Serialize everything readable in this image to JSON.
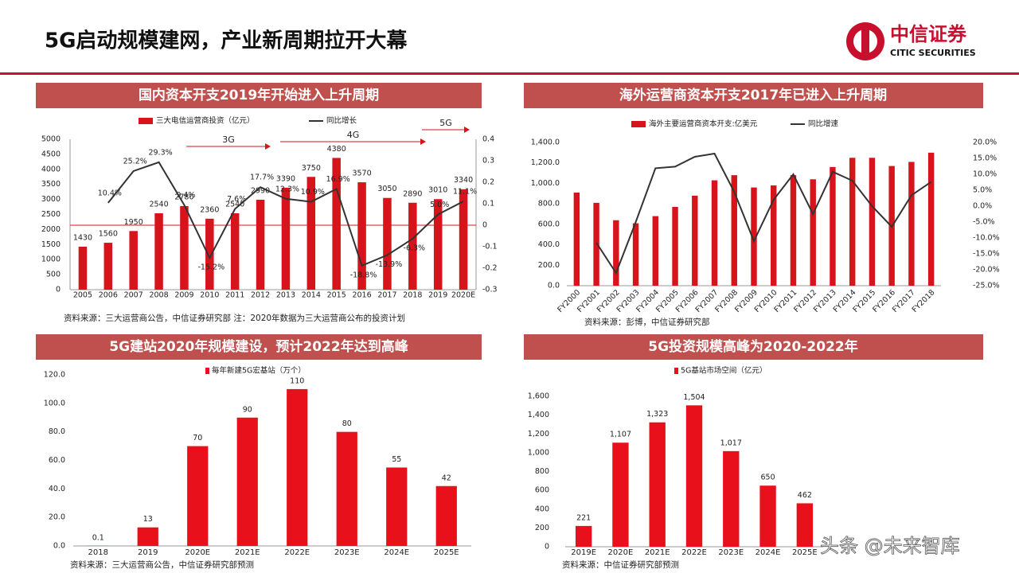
{
  "title": "5G启动规模建网，产业新周期拉开大幕",
  "logo": {
    "name": "中信证券",
    "subtitle": "CITIC SECURITIES"
  },
  "watermark": "头条 @未来智库",
  "chart_data": [
    {
      "type": "combo",
      "title": "国内资本开支2019年开始进入上升周期",
      "source": "资料来源：三大运营商公告，中信证券研究部 注：2020年数据为三大运营商公布的投资计划",
      "annotations": [
        "3G",
        "4G",
        "5G"
      ],
      "categories": [
        "2005",
        "2006",
        "2007",
        "2008",
        "2009",
        "2010",
        "2011",
        "2012",
        "2013",
        "2014",
        "2015",
        "2016",
        "2017",
        "2018",
        "2019",
        "2020E"
      ],
      "series": [
        {
          "name": "三大电信运营商投资（亿元）",
          "type": "bar",
          "color": "#d7141c",
          "values": [
            1430,
            1560,
            1950,
            2540,
            2780,
            2360,
            2540,
            2990,
            3390,
            3750,
            4380,
            3570,
            3050,
            2890,
            3010,
            3340
          ]
        },
        {
          "name": "同比增长",
          "type": "line",
          "color": "#333333",
          "axis": "y2",
          "values": [
            null,
            0.104,
            0.252,
            0.293,
            0.094,
            -0.152,
            0.076,
            0.177,
            0.123,
            0.109,
            0.169,
            -0.188,
            -0.139,
            -0.063,
            0.05,
            0.111
          ],
          "value_labels": [
            null,
            "10.4%",
            "25.2%",
            "29.3%",
            "9.4%",
            "-15.2%",
            "7.6%",
            "17.7%",
            "12.3%",
            "10.9%",
            "16.9%",
            "-18.8%",
            "-13.9%",
            "-6.3%",
            "5.0%",
            "11.1%"
          ]
        }
      ],
      "ylim": [
        0,
        5000
      ],
      "yticks": [
        0,
        500,
        1000,
        1500,
        2000,
        2500,
        3000,
        3500,
        4000,
        4500,
        5000
      ],
      "y2lim": [
        -0.3,
        0.4
      ],
      "y2ticks": [
        -0.3,
        -0.2,
        -0.1,
        0,
        0.1,
        0.2,
        0.3,
        0.4
      ],
      "zero_line": true
    },
    {
      "type": "combo",
      "title": "海外运营商资本开支2017年已进入上升周期",
      "source": "资料来源：彭博，中信证券研究部",
      "categories": [
        "FY2000",
        "FY2001",
        "FY2002",
        "FY2003",
        "FY2004",
        "FY2005",
        "FY2006",
        "FY2007",
        "FY2008",
        "FY2009",
        "FY2010",
        "FY2011",
        "FY2012",
        "FY2013",
        "FY2014",
        "FY2015",
        "FY2016",
        "FY2017",
        "FY2018"
      ],
      "series": [
        {
          "name": "海外主要运营商资本开支:亿美元",
          "type": "bar",
          "color": "#d7141c",
          "values": [
            910,
            810,
            640,
            610,
            680,
            770,
            880,
            1030,
            1080,
            960,
            980,
            1080,
            1040,
            1160,
            1250,
            1250,
            1170,
            1210,
            1300
          ]
        },
        {
          "name": "同比增速",
          "type": "line",
          "color": "#333333",
          "axis": "y2",
          "values": [
            null,
            -11.5,
            -21,
            -5,
            11.9,
            12.4,
            15.5,
            16.5,
            4.5,
            -11,
            2,
            10,
            -2.5,
            10.8,
            8,
            0,
            -6.5,
            3.4,
            7.6
          ]
        }
      ],
      "ylim": [
        0,
        1400
      ],
      "yticks": [
        {
          "value": 0,
          "label": "0.0"
        },
        {
          "value": 200,
          "label": "200.0"
        },
        {
          "value": 400,
          "label": "400.0"
        },
        {
          "value": 600,
          "label": "600.0"
        },
        {
          "value": 800,
          "label": "800.0"
        },
        {
          "value": 1000,
          "label": "1,000.0"
        },
        {
          "value": 1200,
          "label": "1,200.0"
        },
        {
          "value": 1400,
          "label": "1,400.0"
        }
      ],
      "y2lim": [
        -25,
        20
      ],
      "y2ticks": [
        {
          "value": -25,
          "label": "-25.0%"
        },
        {
          "value": -20,
          "label": "-20.0%"
        },
        {
          "value": -15,
          "label": "-15.0%"
        },
        {
          "value": -10,
          "label": "-10.0%"
        },
        {
          "value": -5,
          "label": "-5.0%"
        },
        {
          "value": 0,
          "label": "0.0%"
        },
        {
          "value": 5,
          "label": "5.0%"
        },
        {
          "value": 10,
          "label": "10.0%"
        },
        {
          "value": 15,
          "label": "15.0%"
        },
        {
          "value": 20,
          "label": "20.0%"
        }
      ]
    },
    {
      "type": "bar",
      "title": "5G建站2020年规模建设，预计2022年达到高峰",
      "source": "资料来源：三大运营商公告，中信证券研究部预测",
      "categories": [
        "2018",
        "2019",
        "2020E",
        "2021E",
        "2022E",
        "2023E",
        "2024E",
        "2025E"
      ],
      "series": [
        {
          "name": "每年新建5G宏基站（万个）",
          "type": "bar",
          "color": "#e8101a",
          "values": [
            0.1,
            13,
            70,
            90,
            110,
            80,
            55,
            42
          ]
        }
      ],
      "ylim": [
        0,
        120
      ],
      "yticks": [
        {
          "value": 0,
          "label": "0.0"
        },
        {
          "value": 20,
          "label": "20.0"
        },
        {
          "value": 40,
          "label": "40.0"
        },
        {
          "value": 60,
          "label": "60.0"
        },
        {
          "value": 80,
          "label": "80.0"
        },
        {
          "value": 100,
          "label": "100.0"
        },
        {
          "value": 120,
          "label": "120.0"
        }
      ]
    },
    {
      "type": "bar",
      "title": "5G投资规模高峰为2020-2022年",
      "source": "资料来源：中信证券研究部预测",
      "categories": [
        "2019E",
        "2020E",
        "2021E",
        "2022E",
        "2023E",
        "2024E",
        "2025E"
      ],
      "series": [
        {
          "name": "5G基站市场空间（亿元）",
          "type": "bar",
          "color": "#e8101a",
          "values": [
            221,
            1107,
            1323,
            1504,
            1017,
            650,
            462
          ],
          "value_labels": [
            "221",
            "1,107",
            "1,323",
            "1,504",
            "1,017",
            "650",
            "462"
          ]
        }
      ],
      "ylim": [
        0,
        1600
      ],
      "yticks": [
        0,
        200,
        400,
        600,
        800,
        {
          "value": 1000,
          "label": "1,000"
        },
        {
          "value": 1200,
          "label": "1,200"
        },
        {
          "value": 1400,
          "label": "1,400"
        },
        {
          "value": 1600,
          "label": "1,600"
        }
      ]
    }
  ]
}
